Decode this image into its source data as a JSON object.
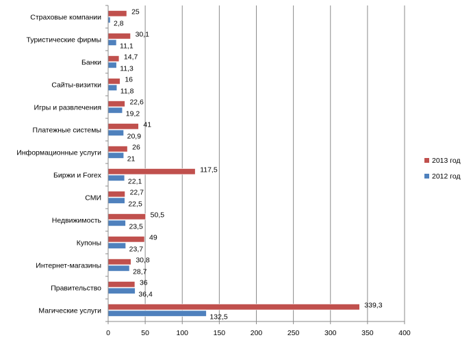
{
  "chart_data": {
    "type": "bar",
    "orientation": "horizontal",
    "categories": [
      "Страховые компании",
      "Туристические фирмы",
      "Банки",
      "Сайты-визитки",
      "Игры и развлечения",
      "Платежные системы",
      "Информационные услуги",
      "Биржи и Forex",
      "СМИ",
      "Недвижимость",
      "Купоны",
      "Интернет-магазины",
      "Правительство",
      "Магические услуги"
    ],
    "series": [
      {
        "name": "2013 год",
        "color": "#C0504D",
        "values": [
          25,
          30.1,
          14.7,
          16,
          22.6,
          41,
          26,
          117.5,
          22.7,
          50.5,
          49,
          30.8,
          36,
          339.3
        ],
        "labels": [
          "25",
          "30,1",
          "14,7",
          "16",
          "22,6",
          "41",
          "26",
          "117,5",
          "22,7",
          "50,5",
          "49",
          "30,8",
          "36",
          "339,3"
        ]
      },
      {
        "name": "2012 год",
        "color": "#4F81BD",
        "values": [
          2.8,
          11.1,
          11.3,
          11.8,
          19.2,
          20.9,
          21,
          22.1,
          22.5,
          23.5,
          23.7,
          28.7,
          36.4,
          132.5
        ],
        "labels": [
          "2,8",
          "11,1",
          "11,3",
          "11,8",
          "19,2",
          "20,9",
          "21",
          "22,1",
          "22,5",
          "23,5",
          "23,7",
          "28,7",
          "36,4",
          "132,5"
        ]
      }
    ],
    "xlim": [
      0,
      400
    ],
    "xticks": [
      0,
      50,
      100,
      150,
      200,
      250,
      300,
      350,
      400
    ],
    "xtick_labels": [
      "0",
      "50",
      "100",
      "150",
      "200",
      "250",
      "300",
      "350",
      "400"
    ],
    "grid": "vertical",
    "legend": "right",
    "legend_items": [
      "2013 год",
      "2012 год"
    ]
  }
}
